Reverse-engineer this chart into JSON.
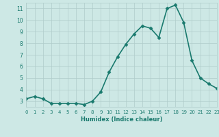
{
  "x": [
    0,
    1,
    2,
    3,
    4,
    5,
    6,
    7,
    8,
    9,
    10,
    11,
    12,
    13,
    14,
    15,
    16,
    17,
    18,
    19,
    20,
    21,
    22,
    23
  ],
  "y": [
    3.2,
    3.4,
    3.2,
    2.8,
    2.8,
    2.8,
    2.8,
    2.7,
    3.0,
    3.8,
    5.5,
    6.8,
    7.9,
    8.8,
    9.5,
    9.3,
    8.5,
    11.0,
    11.3,
    9.8,
    6.5,
    5.0,
    4.5,
    4.1
  ],
  "xlabel": "Humidex (Indice chaleur)",
  "xlim": [
    0,
    23
  ],
  "ylim": [
    2.5,
    11.5
  ],
  "yticks": [
    3,
    4,
    5,
    6,
    7,
    8,
    9,
    10,
    11
  ],
  "xticks": [
    0,
    1,
    2,
    3,
    4,
    5,
    6,
    7,
    8,
    9,
    10,
    11,
    12,
    13,
    14,
    15,
    16,
    17,
    18,
    19,
    20,
    21,
    22,
    23
  ],
  "line_color": "#1a7a6e",
  "bg_color": "#cde8e5",
  "grid_color": "#b0ccca",
  "markersize": 2.5,
  "linewidth": 1.2
}
